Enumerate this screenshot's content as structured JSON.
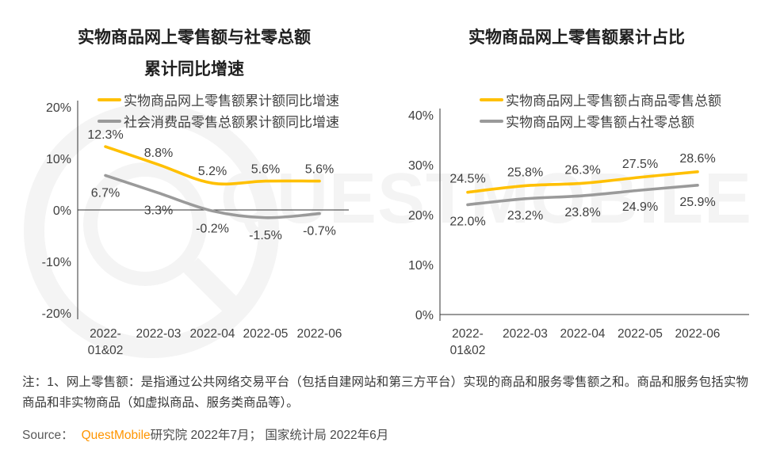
{
  "watermark": {
    "text": "QUESTMOBILE",
    "color": "#f4f4f4"
  },
  "chart_data": [
    {
      "type": "line",
      "title_lines": [
        "实物商品网上零售额与社零总额",
        "累计同比增速"
      ],
      "categories": [
        [
          "2022-",
          "01&02"
        ],
        [
          "2022-03"
        ],
        [
          "2022-04"
        ],
        [
          "2022-05"
        ],
        [
          "2022-06"
        ]
      ],
      "xlabel": "",
      "ylabel": "",
      "ylim": [
        -20,
        20
      ],
      "yticks": [
        20,
        10,
        0,
        -10,
        -20
      ],
      "ytick_format": "percent",
      "grid": false,
      "legend_position": "top",
      "series": [
        {
          "name": "实物商品网上零售额累计额同比增速",
          "color": "#FFC000",
          "values": [
            12.3,
            8.8,
            5.2,
            5.6,
            5.6
          ]
        },
        {
          "name": "社会消费品零售总额累计额同比增速",
          "color": "#9A9A9A",
          "values": [
            6.7,
            3.3,
            -0.2,
            -1.5,
            -0.7
          ]
        }
      ]
    },
    {
      "type": "line",
      "title_lines": [
        "实物商品网上零售额累计占比"
      ],
      "categories": [
        [
          "2022-",
          "01&02"
        ],
        [
          "2022-03"
        ],
        [
          "2022-04"
        ],
        [
          "2022-05"
        ],
        [
          "2022-06"
        ]
      ],
      "xlabel": "",
      "ylabel": "",
      "ylim": [
        0,
        40
      ],
      "yticks": [
        40,
        30,
        20,
        10,
        0
      ],
      "ytick_format": "percent",
      "grid": false,
      "legend_position": "top",
      "series": [
        {
          "name": "实物商品网上零售额占商品零售总额",
          "color": "#FFC000",
          "values": [
            24.5,
            25.8,
            26.3,
            27.5,
            28.6
          ]
        },
        {
          "name": "实物商品网上零售额占社零总额",
          "color": "#9A9A9A",
          "values": [
            22.0,
            23.2,
            23.8,
            24.9,
            25.9
          ]
        }
      ]
    }
  ],
  "note": {
    "text": "注：1、网上零售额：是指通过公共网络交易平台（包括自建网站和第三方平台）实现的商品和服务零售额之和。商品和服务包括实物商品和非实物商品（如虚拟商品、服务类商品等）。"
  },
  "source": {
    "label": "Source：",
    "brand": "QuestMobile",
    "rest": "研究院 2022年7月； 国家统计局 2022年6月"
  }
}
